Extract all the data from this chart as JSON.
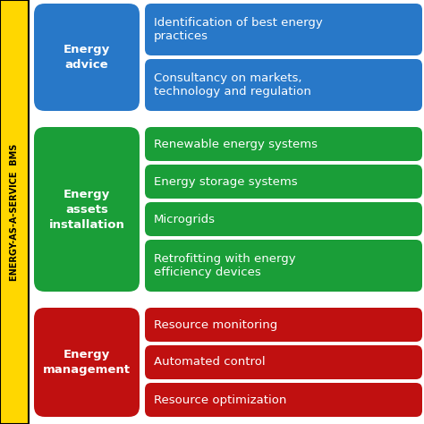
{
  "background_color": "#ffffff",
  "sidebar_color": "#FFD700",
  "sidebar_border_color": "#000000",
  "sidebar_text": "ENERGY-AS-A-SERVICE  BMS",
  "categories": [
    {
      "label": "Energy\nadvice",
      "color": "#2878C8",
      "items": [
        "Identification of best energy\npractices",
        "Consultancy on markets,\ntechnology and regulation"
      ]
    },
    {
      "label": "Energy\nassets\ninstallation",
      "color": "#1A9E38",
      "items": [
        "Renewable energy systems",
        "Energy storage systems",
        "Microgrids",
        "Retrofitting with energy\nefficiency devices"
      ]
    },
    {
      "label": "Energy\nmanagement",
      "color": "#C01010",
      "items": [
        "Resource monitoring",
        "Automated control",
        "Resource optimization"
      ]
    }
  ],
  "text_color": "#ffffff",
  "font_size_label": 9.5,
  "font_size_item": 9.5,
  "font_size_sidebar": 7.0
}
